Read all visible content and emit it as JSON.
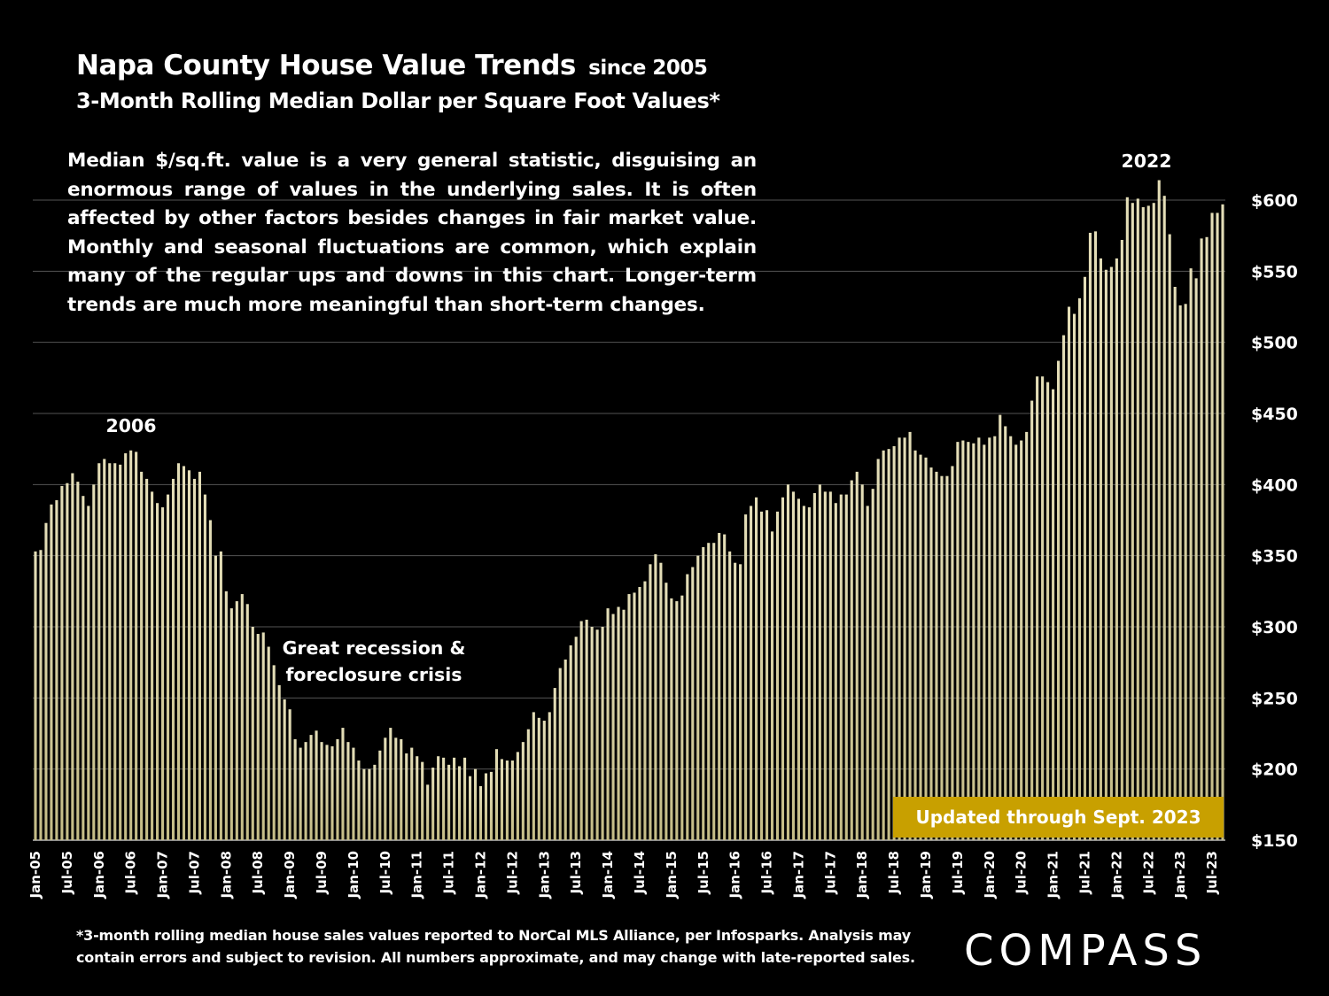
{
  "title": "Napa County House Value Trends",
  "title_suffix": "since 2005",
  "subtitle": "3-Month Rolling Median Dollar per Square Foot Values*",
  "note": "Median $/sq.ft. value is a very general statistic, disguising an enormous range of values in the underlying sales. It is often affected by other factors besides changes in fair market value. Monthly and seasonal fluctuations are common, which explain many of the regular ups and downs in this chart. Longer-term trends are much more meaningful than short-term changes.",
  "footnote": "*3-month rolling median house sales values reported to NorCal MLS Alliance, per Infosparks. Analysis may contain errors and subject to revision. All numbers approximate, and may change with late-reported sales.",
  "logo": "COMPASS",
  "colors": {
    "background": "#000000",
    "bar": "#e4deb8",
    "bar_low": "#c4bc86",
    "badge": "#c8a000",
    "grid": "#555555"
  },
  "chart_data": {
    "type": "bar",
    "x_label_every": 6,
    "ylim": [
      150,
      620
    ],
    "y_ticks": [
      150,
      200,
      250,
      300,
      350,
      400,
      450,
      500,
      550,
      600
    ],
    "y_tick_labels": [
      "$150",
      "$200",
      "$250",
      "$300",
      "$350",
      "$400",
      "$450",
      "$500",
      "$550",
      "$600"
    ],
    "y_axis_side": "right",
    "grid": true,
    "categories": [
      "Jan-05",
      "Feb-05",
      "Mar-05",
      "Apr-05",
      "May-05",
      "Jun-05",
      "Jul-05",
      "Aug-05",
      "Sep-05",
      "Oct-05",
      "Nov-05",
      "Dec-05",
      "Jan-06",
      "Feb-06",
      "Mar-06",
      "Apr-06",
      "May-06",
      "Jun-06",
      "Jul-06",
      "Aug-06",
      "Sep-06",
      "Oct-06",
      "Nov-06",
      "Dec-06",
      "Jan-07",
      "Feb-07",
      "Mar-07",
      "Apr-07",
      "May-07",
      "Jun-07",
      "Jul-07",
      "Aug-07",
      "Sep-07",
      "Oct-07",
      "Nov-07",
      "Dec-07",
      "Jan-08",
      "Feb-08",
      "Mar-08",
      "Apr-08",
      "May-08",
      "Jun-08",
      "Jul-08",
      "Aug-08",
      "Sep-08",
      "Oct-08",
      "Nov-08",
      "Dec-08",
      "Jan-09",
      "Feb-09",
      "Mar-09",
      "Apr-09",
      "May-09",
      "Jun-09",
      "Jul-09",
      "Aug-09",
      "Sep-09",
      "Oct-09",
      "Nov-09",
      "Dec-09",
      "Jan-10",
      "Feb-10",
      "Mar-10",
      "Apr-10",
      "May-10",
      "Jun-10",
      "Jul-10",
      "Aug-10",
      "Sep-10",
      "Oct-10",
      "Nov-10",
      "Dec-10",
      "Jan-11",
      "Feb-11",
      "Mar-11",
      "Apr-11",
      "May-11",
      "Jun-11",
      "Jul-11",
      "Aug-11",
      "Sep-11",
      "Oct-11",
      "Nov-11",
      "Dec-11",
      "Jan-12",
      "Feb-12",
      "Mar-12",
      "Apr-12",
      "May-12",
      "Jun-12",
      "Jul-12",
      "Aug-12",
      "Sep-12",
      "Oct-12",
      "Nov-12",
      "Dec-12",
      "Jan-13",
      "Feb-13",
      "Mar-13",
      "Apr-13",
      "May-13",
      "Jun-13",
      "Jul-13",
      "Aug-13",
      "Sep-13",
      "Oct-13",
      "Nov-13",
      "Dec-13",
      "Jan-14",
      "Feb-14",
      "Mar-14",
      "Apr-14",
      "May-14",
      "Jun-14",
      "Jul-14",
      "Aug-14",
      "Sep-14",
      "Oct-14",
      "Nov-14",
      "Dec-14",
      "Jan-15",
      "Feb-15",
      "Mar-15",
      "Apr-15",
      "May-15",
      "Jun-15",
      "Jul-15",
      "Aug-15",
      "Sep-15",
      "Oct-15",
      "Nov-15",
      "Dec-15",
      "Jan-16",
      "Feb-16",
      "Mar-16",
      "Apr-16",
      "May-16",
      "Jun-16",
      "Jul-16",
      "Aug-16",
      "Sep-16",
      "Oct-16",
      "Nov-16",
      "Dec-16",
      "Jan-17",
      "Feb-17",
      "Mar-17",
      "Apr-17",
      "May-17",
      "Jun-17",
      "Jul-17",
      "Aug-17",
      "Sep-17",
      "Oct-17",
      "Nov-17",
      "Dec-17",
      "Jan-18",
      "Feb-18",
      "Mar-18",
      "Apr-18",
      "May-18",
      "Jun-18",
      "Jul-18",
      "Aug-18",
      "Sep-18",
      "Oct-18",
      "Nov-18",
      "Dec-18",
      "Jan-19",
      "Feb-19",
      "Mar-19",
      "Apr-19",
      "May-19",
      "Jun-19",
      "Jul-19",
      "Aug-19",
      "Sep-19",
      "Oct-19",
      "Nov-19",
      "Dec-19",
      "Jan-20",
      "Feb-20",
      "Mar-20",
      "Apr-20",
      "May-20",
      "Jun-20",
      "Jul-20",
      "Aug-20",
      "Sep-20",
      "Oct-20",
      "Nov-20",
      "Dec-20",
      "Jan-21",
      "Feb-21",
      "Mar-21",
      "Apr-21",
      "May-21",
      "Jun-21",
      "Jul-21",
      "Aug-21",
      "Sep-21",
      "Oct-21",
      "Nov-21",
      "Dec-21",
      "Jan-22",
      "Feb-22",
      "Mar-22",
      "Apr-22",
      "May-22",
      "Jun-22",
      "Jul-22",
      "Aug-22",
      "Sep-22",
      "Oct-22",
      "Nov-22",
      "Dec-22",
      "Jan-23",
      "Feb-23",
      "Mar-23",
      "Apr-23",
      "May-23",
      "Jun-23",
      "Jul-23",
      "Aug-23",
      "Sep-23"
    ],
    "values": [
      353,
      354,
      373,
      386,
      389,
      399,
      401,
      408,
      402,
      392,
      385,
      400,
      415,
      418,
      415,
      415,
      414,
      422,
      424,
      423,
      409,
      404,
      395,
      387,
      384,
      393,
      404,
      415,
      413,
      410,
      404,
      409,
      393,
      375,
      350,
      353,
      325,
      313,
      318,
      323,
      316,
      300,
      295,
      296,
      286,
      273,
      259,
      249,
      242,
      221,
      215,
      219,
      224,
      227,
      219,
      217,
      216,
      221,
      229,
      219,
      215,
      206,
      200,
      200,
      203,
      213,
      222,
      229,
      222,
      221,
      211,
      215,
      209,
      205,
      189,
      201,
      209,
      208,
      203,
      208,
      202,
      208,
      195,
      200,
      188,
      197,
      198,
      214,
      207,
      206,
      206,
      212,
      219,
      228,
      240,
      236,
      234,
      240,
      257,
      271,
      277,
      287,
      293,
      304,
      305,
      300,
      298,
      300,
      313,
      309,
      314,
      312,
      323,
      324,
      328,
      332,
      344,
      351,
      345,
      331,
      320,
      318,
      322,
      337,
      342,
      350,
      356,
      359,
      359,
      366,
      365,
      353,
      345,
      344,
      379,
      385,
      391,
      381,
      382,
      367,
      381,
      391,
      400,
      395,
      390,
      385,
      384,
      394,
      400,
      395,
      395,
      387,
      393,
      393,
      403,
      409,
      400,
      385,
      397,
      418,
      424,
      425,
      427,
      433,
      433,
      437,
      424,
      421,
      419,
      412,
      409,
      406,
      406,
      413,
      430,
      431,
      430,
      429,
      433,
      428,
      433,
      434,
      449,
      441,
      434,
      428,
      431,
      437,
      459,
      476,
      476,
      472,
      467,
      487,
      505,
      525,
      520,
      531,
      546,
      577,
      578,
      559,
      551,
      553,
      559,
      572,
      602,
      598,
      601,
      595,
      596,
      598,
      614,
      603,
      576,
      539,
      526,
      527,
      552,
      545,
      573,
      574,
      591,
      591,
      597
    ],
    "annotations": [
      {
        "text": "2006"
      },
      {
        "text": "Great recession &"
      },
      {
        "text": "foreclosure crisis"
      },
      {
        "text": "2022"
      }
    ],
    "badge": "Updated through Sept. 2023"
  }
}
